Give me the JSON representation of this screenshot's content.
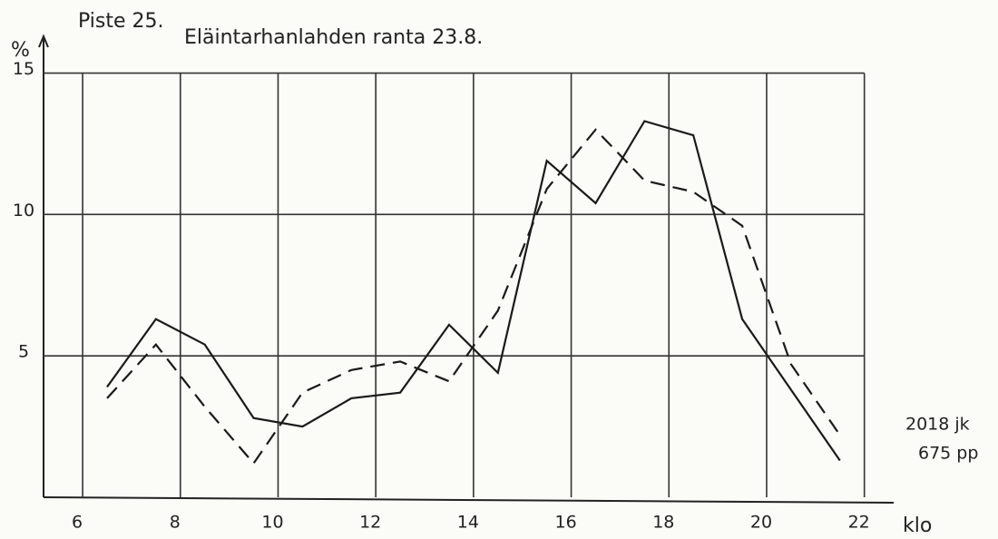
{
  "chart_data": {
    "type": "line",
    "title": "Piste 25.",
    "subtitle": "Eläintarhanlahden ranta 23.8.",
    "y_label": "%",
    "x_label": "klo",
    "annotations": [
      "2018 jk",
      "675 pp"
    ],
    "xlim": [
      5.2,
      22.6
    ],
    "ylim": [
      0,
      16.3
    ],
    "xticks": [
      6,
      8,
      10,
      12,
      14,
      16,
      18,
      20,
      22
    ],
    "yticks": [
      5,
      10,
      15
    ],
    "grid": true,
    "series": [
      {
        "color": "#1a1a1a",
        "dashed": false,
        "x": [
          6.5,
          7.5,
          8.5,
          9.5,
          10.5,
          11.5,
          12.5,
          13.5,
          14.5,
          15.5,
          16.5,
          17.5,
          18.5,
          19.5,
          20.5,
          21.5
        ],
        "values": [
          3.9,
          6.3,
          5.4,
          2.8,
          2.5,
          3.5,
          3.7,
          6.1,
          4.4,
          11.9,
          10.4,
          13.3,
          12.8,
          6.3,
          3.8,
          1.3
        ]
      },
      {
        "color": "#1a1a1a",
        "dashed": true,
        "x": [
          6.5,
          7.5,
          8.5,
          9.5,
          10.5,
          11.5,
          12.5,
          13.5,
          14.5,
          15.5,
          16.5,
          17.5,
          18.5,
          19.5,
          20.5,
          21.5
        ],
        "values": [
          3.5,
          5.4,
          3.2,
          1.2,
          3.7,
          4.5,
          4.8,
          4.1,
          6.6,
          10.9,
          13.0,
          11.2,
          10.8,
          9.6,
          4.7,
          2.2
        ]
      }
    ]
  }
}
